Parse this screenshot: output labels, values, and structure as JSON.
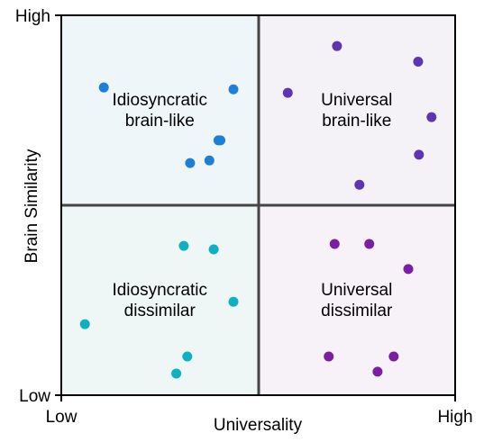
{
  "chart_data": {
    "type": "scatter",
    "title": "",
    "xlabel": "Universality",
    "ylabel": "Brain Similarity",
    "xlim": [
      0,
      1
    ],
    "ylim": [
      0,
      1
    ],
    "x_tick_labels": [
      "Low",
      "High"
    ],
    "y_tick_labels": [
      "Low",
      "High"
    ],
    "grid": false,
    "quadrants": [
      {
        "lines": [
          "Idiosyncratic",
          "brain-like"
        ],
        "fill": "#eef6fa",
        "x": 0.25,
        "y": 0.75
      },
      {
        "lines": [
          "Universal",
          "brain-like"
        ],
        "fill": "#f4f1f7",
        "x": 0.75,
        "y": 0.75
      },
      {
        "lines": [
          "Idiosyncratic",
          "dissimilar"
        ],
        "fill": "#eef6f6",
        "x": 0.25,
        "y": 0.25
      },
      {
        "lines": [
          "Universal",
          "dissimilar"
        ],
        "fill": "#f7f2f7",
        "x": 0.75,
        "y": 0.25
      }
    ],
    "series": [
      {
        "color": "#1f7fd6",
        "points": [
          {
            "x": 0.108,
            "y": 0.81
          },
          {
            "x": 0.437,
            "y": 0.805
          },
          {
            "x": 0.399,
            "y": 0.671
          },
          {
            "x": 0.404,
            "y": 0.671
          },
          {
            "x": 0.376,
            "y": 0.618
          },
          {
            "x": 0.327,
            "y": 0.611
          }
        ]
      },
      {
        "color": "#5e35b1",
        "points": [
          {
            "x": 0.7,
            "y": 0.919
          },
          {
            "x": 0.906,
            "y": 0.878
          },
          {
            "x": 0.575,
            "y": 0.796
          },
          {
            "x": 0.94,
            "y": 0.732
          },
          {
            "x": 0.908,
            "y": 0.633
          },
          {
            "x": 0.757,
            "y": 0.554
          }
        ]
      },
      {
        "color": "#0fb0c0",
        "points": [
          {
            "x": 0.311,
            "y": 0.393
          },
          {
            "x": 0.387,
            "y": 0.384
          },
          {
            "x": 0.437,
            "y": 0.246
          },
          {
            "x": 0.06,
            "y": 0.187
          },
          {
            "x": 0.32,
            "y": 0.102
          },
          {
            "x": 0.292,
            "y": 0.057
          }
        ]
      },
      {
        "color": "#7b1fa2",
        "points": [
          {
            "x": 0.694,
            "y": 0.398
          },
          {
            "x": 0.782,
            "y": 0.398
          },
          {
            "x": 0.881,
            "y": 0.332
          },
          {
            "x": 0.679,
            "y": 0.102
          },
          {
            "x": 0.844,
            "y": 0.102
          },
          {
            "x": 0.803,
            "y": 0.062
          }
        ]
      }
    ]
  }
}
